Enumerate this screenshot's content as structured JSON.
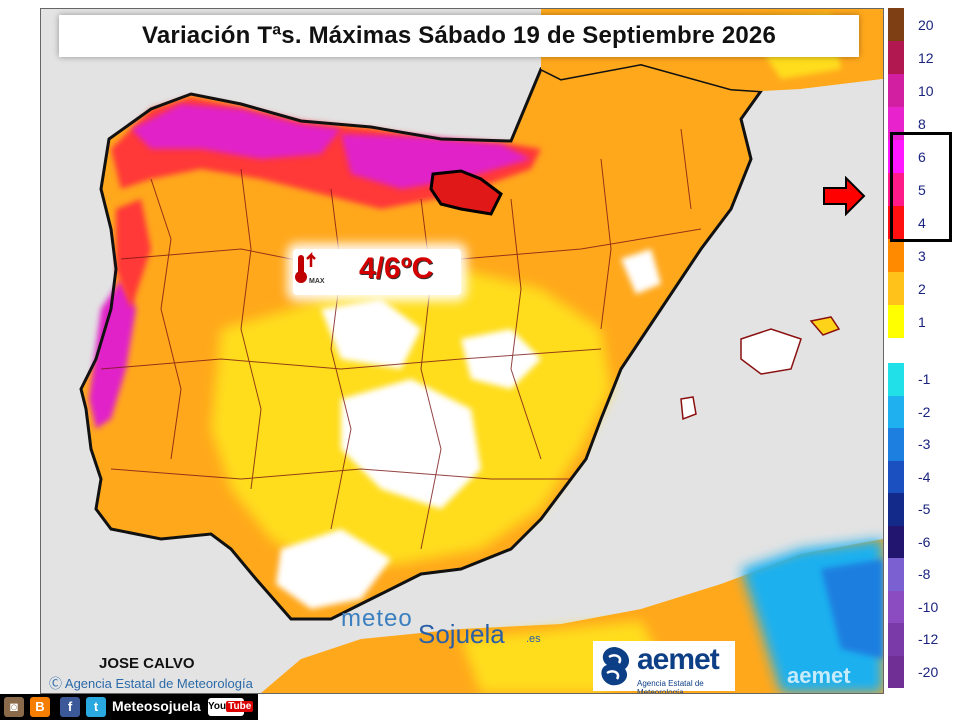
{
  "title": "Variación Tªs. Máximas Sábado 19 de Septiembre 2026",
  "highlight": {
    "value_text": "4/6ºC",
    "thermometer_label": "MAX",
    "icon": "thermometer-up-icon"
  },
  "legend": {
    "entries": [
      {
        "label": "20",
        "color": "#7f3f14"
      },
      {
        "label": "12",
        "color": "#b0184f"
      },
      {
        "label": "10",
        "color": "#d21ea0"
      },
      {
        "label": "8",
        "color": "#e822cc"
      },
      {
        "label": "6",
        "color": "#ff17ff"
      },
      {
        "label": "5",
        "color": "#ff1a8a"
      },
      {
        "label": "4",
        "color": "#ff0f0f"
      },
      {
        "label": "3",
        "color": "#ff8a00"
      },
      {
        "label": "2",
        "color": "#ffc21a"
      },
      {
        "label": "1",
        "color": "#ffff00"
      },
      {
        "label": "",
        "color": "#ffffff"
      },
      {
        "label": "-1",
        "color": "#22e0e8"
      },
      {
        "label": "-2",
        "color": "#1fb0ef"
      },
      {
        "label": "-3",
        "color": "#1d7fe0"
      },
      {
        "label": "-4",
        "color": "#1b50c0"
      },
      {
        "label": "-5",
        "color": "#142a8a"
      },
      {
        "label": "-6",
        "color": "#221570"
      },
      {
        "label": "-8",
        "color": "#7a60d0"
      },
      {
        "label": "-10",
        "color": "#8a4cc0"
      },
      {
        "label": "-12",
        "color": "#7a3ba8"
      },
      {
        "label": "-20",
        "color": "#702f95"
      }
    ],
    "selected_range": [
      "4",
      "6"
    ],
    "pointer_icon": "red-arrow-icon"
  },
  "watermark": {
    "part1": "meteo",
    "part2": "Sojuela",
    "part3": ".es"
  },
  "author": "JOSE CALVO",
  "credit": "Agencia Estatal de Meteorología",
  "aemet_logo": {
    "name": "aemet",
    "subtitle": "Agencia Estatal de Meteorología",
    "ghost": "aemet"
  },
  "social": {
    "icons": [
      "instagram-icon",
      "blogger-icon",
      "facebook-icon",
      "twitter-icon"
    ],
    "name": "Meteosojuela",
    "youtube_you": "You",
    "youtube_tube": "Tube"
  }
}
